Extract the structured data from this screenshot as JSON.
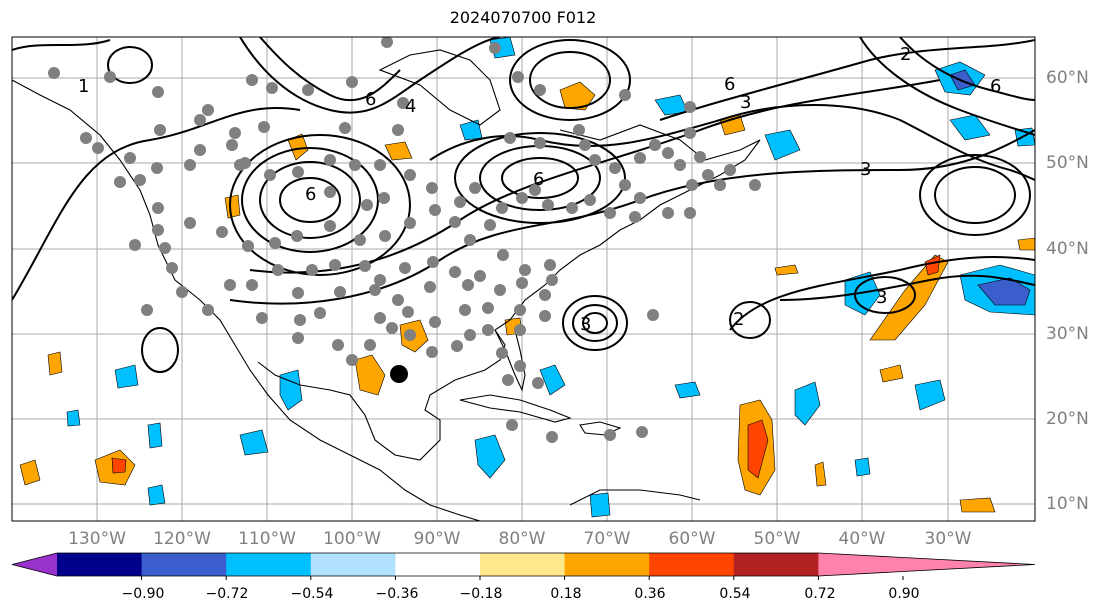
{
  "title": "2024070700 F012",
  "lat_labels": [
    "60°N",
    "50°N",
    "40°N",
    "30°N",
    "20°N",
    "10°N"
  ],
  "lon_labels": [
    "130°W",
    "120°W",
    "110°W",
    "100°W",
    "90°W",
    "80°W",
    "70°W",
    "60°W",
    "50°W",
    "40°W",
    "30°W"
  ],
  "colorbar": {
    "tick_labels": [
      "−0.90",
      "−0.72",
      "−0.54",
      "−0.36",
      "−0.18",
      "0.18",
      "0.36",
      "0.54",
      "0.72",
      "0.90"
    ],
    "colors": [
      "#9932cc",
      "#00008b",
      "#3a5fcd",
      "#00bfff",
      "#b0e2ff",
      "#ffffff",
      "#ffe88c",
      "#ffa500",
      "#ff4500",
      "#b22222",
      "#ff82ab"
    ]
  },
  "contour_labels": [
    "6",
    "4",
    "3",
    "2",
    "1"
  ],
  "map": {
    "extent": {
      "lon_min": -136,
      "lon_max": -15,
      "lat_min": 8,
      "lat_max": 65
    },
    "grid": true,
    "station_marker_color": "#808080",
    "highlight_marker_color": "#000000"
  }
}
